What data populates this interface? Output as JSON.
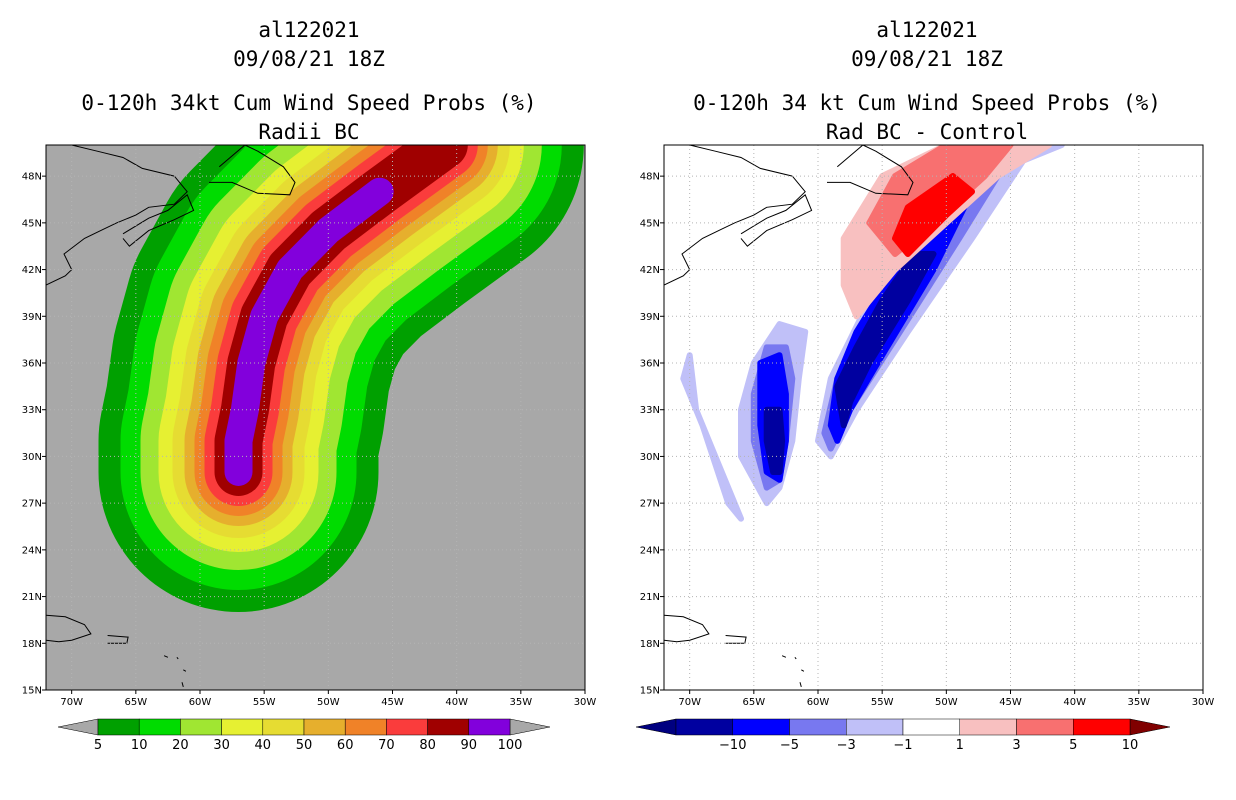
{
  "chart_data": [
    {
      "type": "heatmap",
      "title": "al122021",
      "subtitle": "09/08/21 18Z",
      "variable": "0-120h 34kt Cum Wind Speed Probs (%)",
      "field": "Radii BC",
      "xlim": [
        -72,
        -30
      ],
      "ylim": [
        15,
        50
      ],
      "x_ticks": [
        "70W",
        "65W",
        "60W",
        "55W",
        "50W",
        "45W",
        "40W",
        "35W",
        "30W"
      ],
      "y_ticks": [
        "15N",
        "18N",
        "21N",
        "24N",
        "27N",
        "30N",
        "33N",
        "36N",
        "39N",
        "42N",
        "45N",
        "48N"
      ],
      "colorbar": {
        "labels": [
          "5",
          "10",
          "20",
          "30",
          "40",
          "50",
          "60",
          "70",
          "80",
          "90",
          "100"
        ],
        "colors": [
          "#00a000",
          "#00dc00",
          "#a0e632",
          "#e6f032",
          "#e6dc32",
          "#e6af2d",
          "#f08228",
          "#fa3c3c",
          "#a00000",
          "#8200dc"
        ]
      },
      "band_levels": [
        5,
        10,
        20,
        30,
        40,
        50,
        60,
        70,
        80,
        90
      ],
      "track": [
        [
          -57,
          29
        ],
        [
          -57,
          31
        ],
        [
          -56.5,
          33
        ],
        [
          -56,
          36
        ],
        [
          -55,
          39
        ],
        [
          -53,
          42
        ],
        [
          -50,
          44.5
        ],
        [
          -46,
          47
        ],
        [
          -41,
          50
        ]
      ],
      "core_track": [
        [
          -57,
          29
        ],
        [
          -57,
          31
        ],
        [
          -56.5,
          33
        ],
        [
          -56,
          36
        ],
        [
          -55,
          39
        ],
        [
          -53,
          42
        ],
        [
          -50,
          44.5
        ],
        [
          -46,
          47
        ]
      ]
    },
    {
      "type": "heatmap",
      "title": "al122021",
      "subtitle": "09/08/21 18Z",
      "variable": "0-120h 34 kt Cum Wind Speed Probs (%)",
      "field": "Rad BC - Control",
      "xlim": [
        -72,
        -30
      ],
      "ylim": [
        15,
        50
      ],
      "x_ticks": [
        "70W",
        "65W",
        "60W",
        "55W",
        "50W",
        "45W",
        "40W",
        "35W",
        "30W"
      ],
      "y_ticks": [
        "15N",
        "18N",
        "21N",
        "24N",
        "27N",
        "30N",
        "33N",
        "36N",
        "39N",
        "42N",
        "45N",
        "48N"
      ],
      "colorbar": {
        "labels": [
          "-10",
          "-5",
          "-3",
          "-1",
          "1",
          "3",
          "5",
          "10"
        ],
        "colors": [
          "#0000a0",
          "#0000ff",
          "#7878f0",
          "#c0c0f8",
          "#ffffff",
          "#f8c0c0",
          "#f87070",
          "#ff0000"
        ],
        "end_colors": [
          "#000080",
          "#800000"
        ]
      },
      "diff_blobs": [
        {
          "level": -1,
          "pts": [
            [
              -59,
              30
            ],
            [
              -57,
              33
            ],
            [
              -53,
              38
            ],
            [
              -48,
              44
            ],
            [
              -44,
              49
            ],
            [
              -41,
              50
            ],
            [
              -46,
              50
            ],
            [
              -51,
              46
            ],
            [
              -56,
              40
            ],
            [
              -59,
              35
            ],
            [
              -60,
              31
            ]
          ]
        },
        {
          "level": -3,
          "pts": [
            [
              -59,
              30.5
            ],
            [
              -57.5,
              33
            ],
            [
              -54,
              37.5
            ],
            [
              -49,
              44
            ],
            [
              -46,
              48
            ],
            [
              -48,
              48
            ],
            [
              -52,
              44
            ],
            [
              -56,
              39
            ],
            [
              -58.5,
              35
            ],
            [
              -59.5,
              31.5
            ]
          ]
        },
        {
          "level": -5,
          "pts": [
            [
              -58.5,
              31
            ],
            [
              -57.5,
              33
            ],
            [
              -55,
              36.5
            ],
            [
              -51,
              42
            ],
            [
              -48,
              47
            ],
            [
              -50,
              47
            ],
            [
              -54,
              42
            ],
            [
              -57,
              38
            ],
            [
              -58.5,
              35
            ],
            [
              -59,
              32
            ]
          ]
        },
        {
          "level": -10,
          "pts": [
            [
              -58,
              32
            ],
            [
              -57.5,
              33.5
            ],
            [
              -56,
              36
            ],
            [
              -53,
              40
            ],
            [
              -51,
              43
            ],
            [
              -52.5,
              43
            ],
            [
              -55,
              40
            ],
            [
              -57,
              37
            ],
            [
              -58.5,
              34.5
            ]
          ]
        },
        {
          "level": -1,
          "pts": [
            [
              -63,
              28
            ],
            [
              -62,
              31
            ],
            [
              -61.5,
              35
            ],
            [
              -61,
              38
            ],
            [
              -63,
              38.5
            ],
            [
              -65,
              36
            ],
            [
              -66,
              33
            ],
            [
              -66,
              30
            ],
            [
              -64,
              27
            ]
          ]
        },
        {
          "level": -3,
          "pts": [
            [
              -63,
              28.5
            ],
            [
              -62.5,
              31
            ],
            [
              -62,
              35
            ],
            [
              -62.5,
              37
            ],
            [
              -64,
              37
            ],
            [
              -65,
              34
            ],
            [
              -65,
              31
            ],
            [
              -64,
              28
            ]
          ]
        },
        {
          "level": -5,
          "pts": [
            [
              -63,
              28.5
            ],
            [
              -62.5,
              31
            ],
            [
              -62.5,
              34
            ],
            [
              -63,
              36.5
            ],
            [
              -64.5,
              36
            ],
            [
              -64.5,
              32
            ],
            [
              -64,
              29
            ]
          ]
        },
        {
          "level": -10,
          "pts": [
            [
              -63,
              29
            ],
            [
              -62.8,
              31
            ],
            [
              -63,
              33
            ],
            [
              -64,
              33
            ],
            [
              -64,
              31
            ],
            [
              -63.5,
              29
            ]
          ]
        },
        {
          "level": -1,
          "pts": [
            [
              -70,
              34
            ],
            [
              -69,
              32
            ],
            [
              -67,
              27
            ],
            [
              -66,
              26
            ],
            [
              -68,
              30
            ],
            [
              -69.5,
              33
            ],
            [
              -70,
              36.5
            ],
            [
              -70.5,
              35
            ]
          ]
        },
        {
          "level": 1,
          "pts": [
            [
              -57,
              39
            ],
            [
              -54,
              42
            ],
            [
              -50,
              45
            ],
            [
              -46,
              48
            ],
            [
              -42,
              50
            ],
            [
              -50,
              50
            ],
            [
              -55,
              48
            ],
            [
              -58,
              44
            ],
            [
              -58,
              41
            ]
          ]
        },
        {
          "level": 3,
          "pts": [
            [
              -54,
              43
            ],
            [
              -51,
              45
            ],
            [
              -47,
              48
            ],
            [
              -45,
              50
            ],
            [
              -50,
              50
            ],
            [
              -54,
              48
            ],
            [
              -56,
              45
            ]
          ]
        },
        {
          "level": 5,
          "pts": [
            [
              -53,
              43
            ],
            [
              -50,
              45.5
            ],
            [
              -48,
              47
            ],
            [
              -49.5,
              48
            ],
            [
              -53,
              46
            ],
            [
              -54,
              44
            ]
          ]
        }
      ]
    }
  ]
}
